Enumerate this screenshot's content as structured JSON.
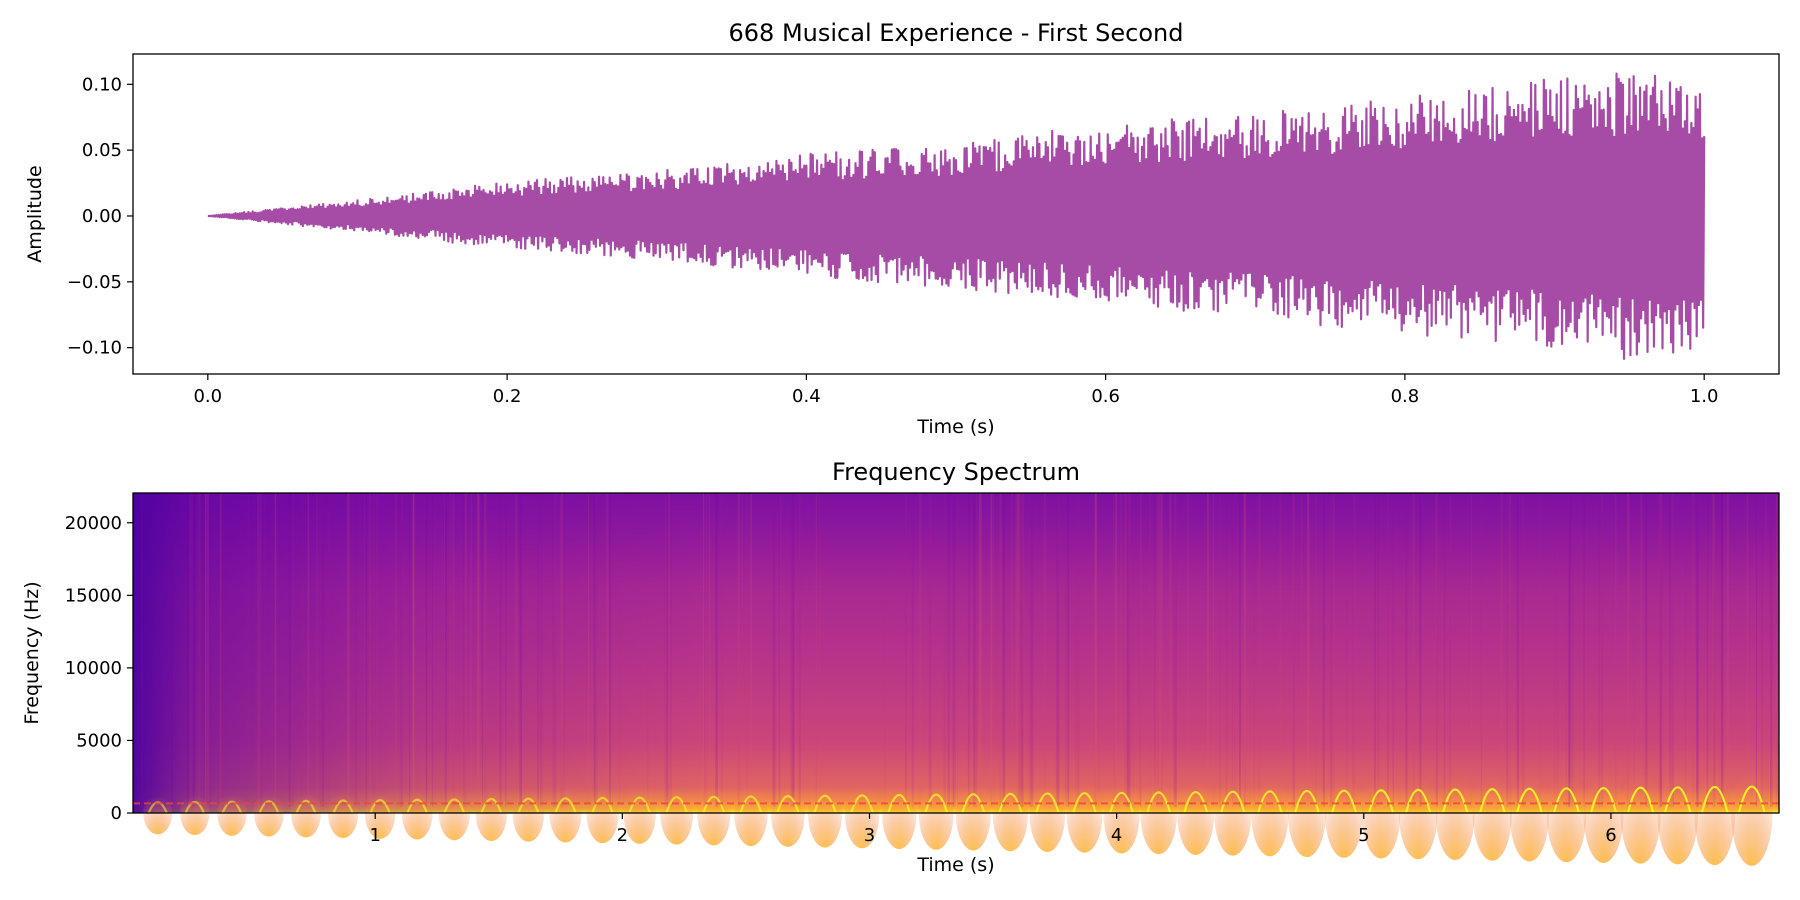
{
  "chart_data": [
    {
      "type": "line",
      "title": "668 Musical Experience - First Second",
      "xlabel": "Time (s)",
      "ylabel": "Amplitude",
      "xlim": [
        -0.05,
        1.05
      ],
      "ylim": [
        -0.12,
        0.123
      ],
      "xticks": [
        0.0,
        0.2,
        0.4,
        0.6,
        0.8,
        1.0
      ],
      "xtick_labels": [
        "0.0",
        "0.2",
        "0.4",
        "0.6",
        "0.8",
        "1.0"
      ],
      "yticks": [
        0.1,
        0.05,
        0.0,
        -0.05,
        -0.1
      ],
      "ytick_labels": [
        "0.10",
        "0.05",
        "0.00",
        "−0.05",
        "−0.10"
      ],
      "line_color": "#a64ca6",
      "grid": false,
      "series": [
        {
          "x": [
            0.0,
            0.1,
            0.2,
            0.3,
            0.4,
            0.5,
            0.6,
            0.7,
            0.8,
            0.9,
            0.95,
            1.0
          ],
          "envelope_max": [
            0.0,
            0.012,
            0.026,
            0.034,
            0.047,
            0.055,
            0.07,
            0.078,
            0.09,
            0.105,
            0.11,
            0.105
          ],
          "envelope_min": [
            0.0,
            -0.012,
            -0.025,
            -0.033,
            -0.046,
            -0.055,
            -0.068,
            -0.078,
            -0.09,
            -0.1,
            -0.11,
            -0.1
          ]
        }
      ]
    },
    {
      "type": "heatmap",
      "title": "Frequency Spectrum",
      "xlabel": "Time (s)",
      "ylabel": "Frequency (Hz)",
      "xlim": [
        0.02,
        6.68
      ],
      "ylim": [
        0,
        22050
      ],
      "xticks": [
        1,
        2,
        3,
        4,
        5,
        6
      ],
      "xtick_labels": [
        "1",
        "2",
        "3",
        "4",
        "5",
        "6"
      ],
      "yticks": [
        0,
        5000,
        10000,
        15000,
        20000
      ],
      "ytick_labels": [
        "0",
        "5000",
        "10000",
        "15000",
        "20000"
      ],
      "colormap": "plasma",
      "colors": [
        "#5c01a6",
        "#9a179b",
        "#cb4679",
        "#ed7953",
        "#fdb42f",
        "#f0f921"
      ],
      "base_tone_hz": 660,
      "pulse_period_s": 0.15,
      "grid": false
    }
  ]
}
